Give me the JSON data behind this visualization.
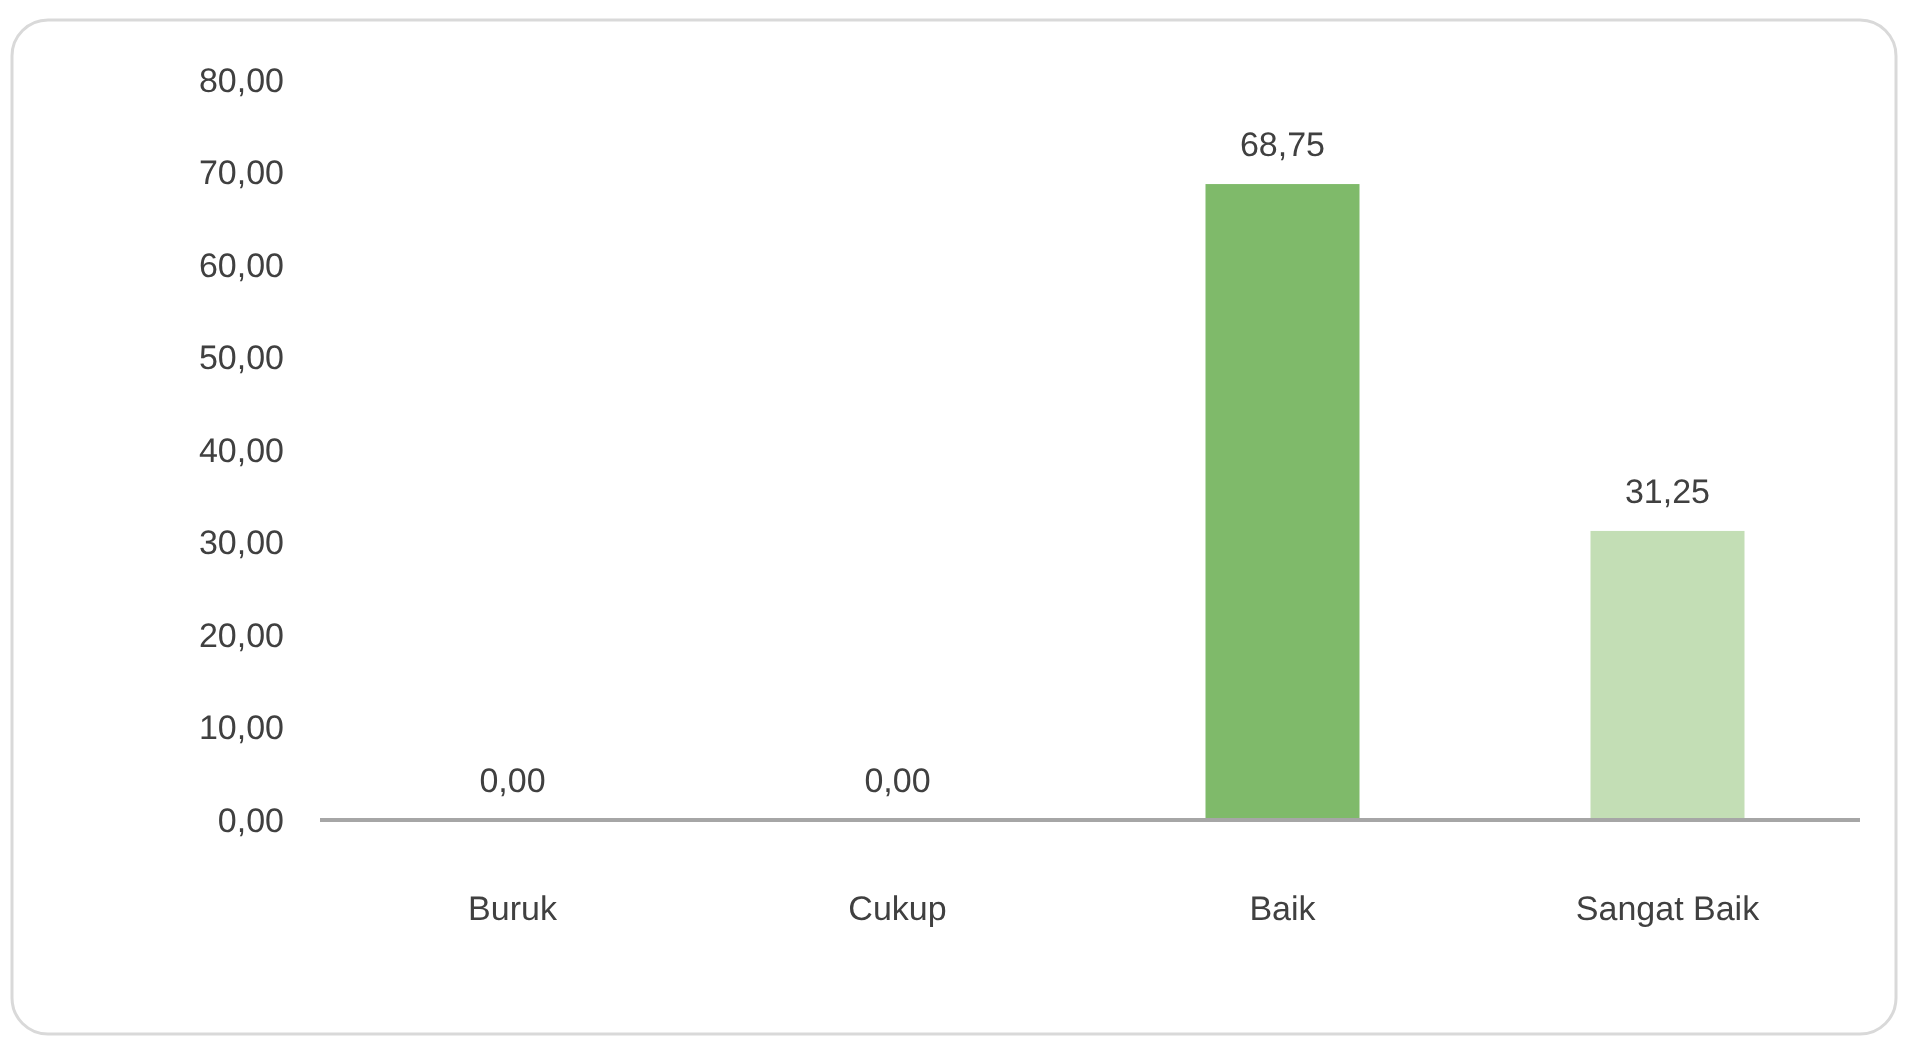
{
  "chart_data": {
    "type": "bar",
    "categories": [
      "Buruk",
      "Cukup",
      "Baik",
      "Sangat Baik"
    ],
    "values": [
      0,
      0,
      68.75,
      31.25
    ],
    "colors": [
      "#7fba6a",
      "#7fba6a",
      "#7fba6a",
      "#c3deb5"
    ],
    "value_labels": [
      "0,00",
      "0,00",
      "68,75",
      "31,25"
    ],
    "ylim": [
      0,
      80
    ],
    "yticks": [
      {
        "value": 0,
        "label": "0,00"
      },
      {
        "value": 10,
        "label": "10,00"
      },
      {
        "value": 20,
        "label": "20,00"
      },
      {
        "value": 30,
        "label": "30,00"
      },
      {
        "value": 40,
        "label": "40,00"
      },
      {
        "value": 50,
        "label": "50,00"
      },
      {
        "value": 60,
        "label": "60,00"
      },
      {
        "value": 70,
        "label": "70,00"
      },
      {
        "value": 80,
        "label": "80,00"
      }
    ],
    "grid": false
  }
}
